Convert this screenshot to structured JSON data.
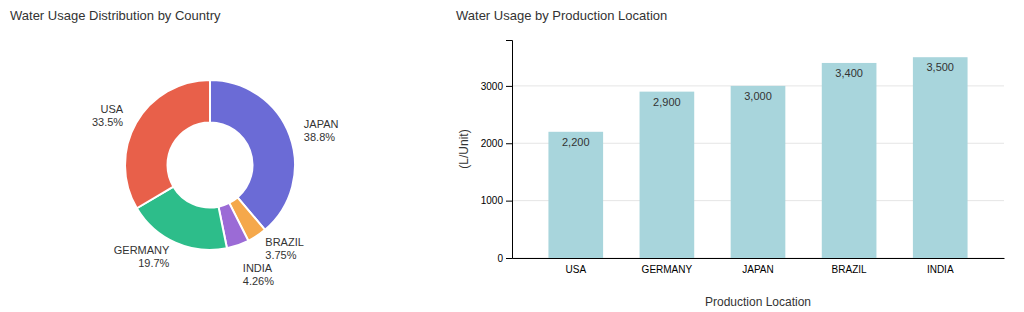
{
  "chart_data": [
    {
      "type": "donut",
      "title": "Water Usage Distribution by Country",
      "categories": [
        "JAPAN",
        "BRAZIL",
        "INDIA",
        "GERMANY",
        "USA"
      ],
      "values": [
        38.8,
        3.75,
        4.26,
        19.7,
        33.5
      ],
      "value_labels": [
        "38.8%",
        "3.75%",
        "4.26%",
        "19.7%",
        "33.5%"
      ],
      "colors": [
        "#6B6BD6",
        "#F5A84B",
        "#9B6BD6",
        "#2DBD8A",
        "#E8604A"
      ],
      "data_labels": true
    },
    {
      "type": "bar",
      "title": "Water Usage by Production Location",
      "xlabel": "Production Location",
      "ylabel": "(L/Unit)",
      "categories": [
        "USA",
        "GERMANY",
        "JAPAN",
        "BRAZIL",
        "INDIA"
      ],
      "values": [
        2200,
        2900,
        3000,
        3400,
        3500
      ],
      "value_labels": [
        "2,200",
        "2,900",
        "3,000",
        "3,400",
        "3,500"
      ],
      "color": "#A8D5DC",
      "ylim": [
        0,
        3800
      ],
      "yticks": [
        0,
        1000,
        2000,
        3000
      ],
      "grid": true,
      "data_labels": true
    }
  ]
}
